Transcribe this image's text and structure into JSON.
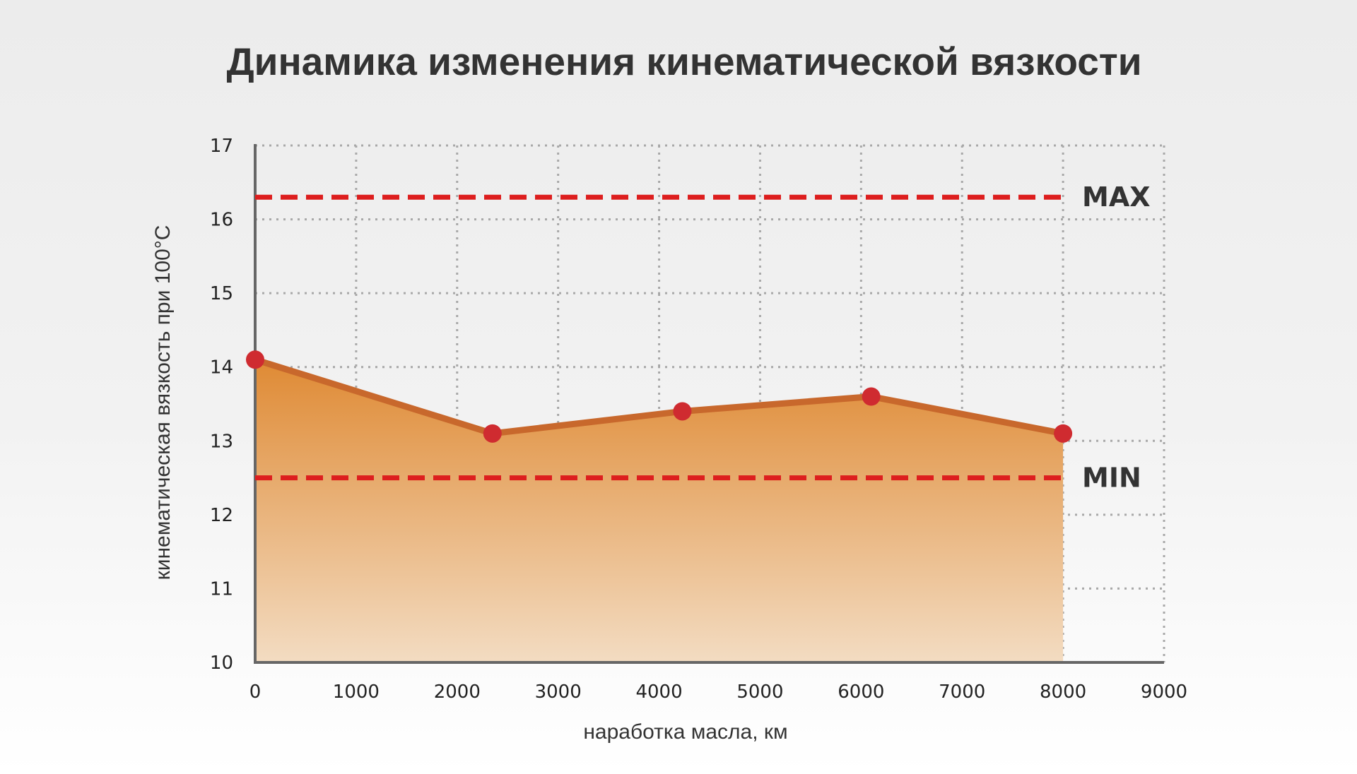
{
  "chart_data": {
    "type": "area",
    "title": "Динамика изменения кинематической вязкости",
    "xlabel": "наработка масла, км",
    "ylabel": "кинематическая вязкость при 100°C",
    "xlim": [
      0,
      9000
    ],
    "ylim": [
      10,
      17
    ],
    "x_ticks": [
      "0",
      "1000",
      "2000",
      "3000",
      "4000",
      "5000",
      "6000",
      "7000",
      "8000",
      "9000"
    ],
    "y_ticks": [
      "10",
      "11",
      "12",
      "13",
      "14",
      "15",
      "16",
      "17"
    ],
    "grid": true,
    "series": [
      {
        "x": [
          0,
          2350,
          4230,
          6100,
          8000
        ],
        "y": [
          14.1,
          13.1,
          13.4,
          13.6,
          13.1
        ]
      }
    ],
    "reference_lines": [
      {
        "label": "MAX",
        "y": 16.3
      },
      {
        "label": "MIN",
        "y": 12.5
      }
    ],
    "colors": {
      "area_top": "#df8a34",
      "area_bottom": "#f3dcc2",
      "line": "#c8682c",
      "points": "#cf2b30",
      "limits": "#dd1e1e",
      "grid": "#a8a8a8",
      "axis": "#666666"
    }
  }
}
